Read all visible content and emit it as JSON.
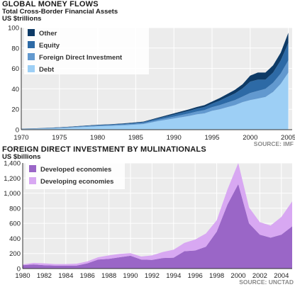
{
  "panel1": {
    "heading": "GLOBAL MONEY FLOWS",
    "subtitle": "Total Cross-Border Financial Assets",
    "unit": "US $trillions",
    "source": "SOURCE: IMF"
  },
  "panel2": {
    "heading": "FOREIGN DIRECT INVESTMENT BY MULINATIONALS",
    "unit": "US $billions",
    "source": "SOURCE: UNCTAD"
  },
  "colors": {
    "other": "#0d3a66",
    "equity": "#2d6aa6",
    "fdi": "#6299cf",
    "debt": "#9dcff5",
    "developed": "#9a66c7",
    "developing": "#d8a8f2",
    "panel_bg": "#ececec"
  },
  "chart_data": [
    {
      "type": "area",
      "stacked": true,
      "title": "Total Cross-Border Financial Assets",
      "ylabel": "US $trillions",
      "x": [
        1970,
        1972,
        1974,
        1976,
        1978,
        1980,
        1982,
        1984,
        1986,
        1988,
        1990,
        1992,
        1993,
        1994,
        1995,
        1996,
        1997,
        1998,
        1999,
        2000,
        2001,
        2002,
        2003,
        2004,
        2005
      ],
      "xlim": [
        1970,
        2005.5
      ],
      "ylim": [
        0,
        100
      ],
      "xticks": [
        1970,
        1975,
        1980,
        1985,
        1990,
        1995,
        2000,
        2005
      ],
      "yticks": [
        0,
        20,
        40,
        60,
        80,
        100
      ],
      "legend": "top-left",
      "grid": true,
      "series": [
        {
          "name": "Debt",
          "values": [
            0.5,
            0.8,
            1.2,
            1.8,
            2.6,
            3.3,
            3.8,
            4.5,
            5.5,
            8.5,
            11,
            13.5,
            15,
            16,
            18.5,
            20,
            22,
            24,
            27,
            29,
            30.5,
            32,
            37,
            45,
            56
          ]
        },
        {
          "name": "Foreign Direct Investment",
          "values": [
            0.2,
            0.3,
            0.4,
            0.5,
            0.6,
            0.7,
            0.8,
            0.9,
            1,
            1.3,
            1.8,
            2.5,
            2.8,
            3.2,
            3.5,
            4,
            4.5,
            5,
            5.5,
            7,
            7.5,
            8,
            9,
            10,
            12
          ]
        },
        {
          "name": "Equity",
          "values": [
            0.2,
            0.2,
            0.3,
            0.3,
            0.4,
            0.5,
            0.6,
            0.7,
            0.9,
            1.4,
            2,
            2.5,
            2.8,
            3,
            3.5,
            4.5,
            5.5,
            6.5,
            8,
            11,
            11,
            9,
            10,
            13,
            17
          ]
        },
        {
          "name": "Other",
          "values": [
            0.1,
            0.1,
            0.1,
            0.2,
            0.2,
            0.3,
            0.3,
            0.4,
            0.5,
            0.8,
            1.2,
            1.5,
            1.6,
            1.8,
            2,
            2.5,
            3,
            3.5,
            4,
            6,
            7,
            7,
            7,
            7.5,
            10
          ]
        }
      ]
    },
    {
      "type": "area",
      "stacked": true,
      "title": "FOREIGN DIRECT INVESTMENT BY MULINATIONALS",
      "ylabel": "US $billions",
      "x": [
        1980,
        1981,
        1982,
        1983,
        1984,
        1985,
        1986,
        1987,
        1988,
        1989,
        1990,
        1991,
        1992,
        1993,
        1994,
        1995,
        1996,
        1997,
        1998,
        1999,
        2000,
        2001,
        2002,
        2003,
        2004,
        2005
      ],
      "xlim": [
        1980,
        2005
      ],
      "ylim": [
        0,
        1400
      ],
      "xticks": [
        1980,
        1982,
        1984,
        1986,
        1988,
        1990,
        1992,
        1994,
        1996,
        1998,
        2000,
        2002,
        2004
      ],
      "yticks": [
        0,
        200,
        400,
        600,
        800,
        1000,
        1200,
        1400
      ],
      "legend": "top-left",
      "grid": true,
      "series": [
        {
          "name": "Developed economies",
          "values": [
            45,
            55,
            45,
            40,
            40,
            40,
            70,
            120,
            130,
            150,
            170,
            120,
            115,
            140,
            145,
            230,
            240,
            290,
            490,
            850,
            1120,
            600,
            450,
            410,
            450,
            560
          ]
        },
        {
          "name": "Developing economies",
          "values": [
            10,
            20,
            25,
            20,
            20,
            25,
            25,
            30,
            45,
            45,
            35,
            40,
            60,
            80,
            105,
            110,
            145,
            175,
            150,
            200,
            280,
            210,
            165,
            160,
            235,
            330
          ]
        }
      ]
    }
  ]
}
